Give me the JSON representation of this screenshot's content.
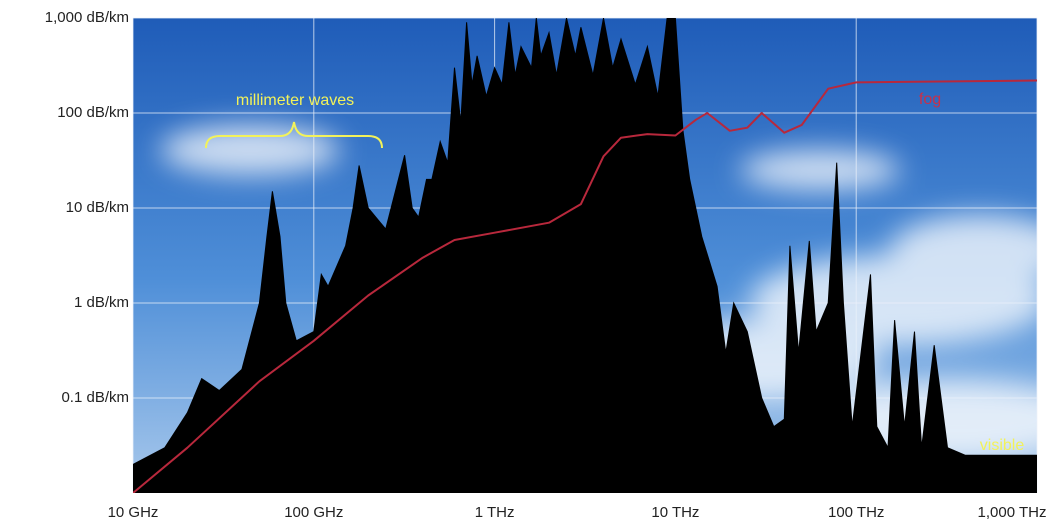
{
  "chart_data": {
    "type": "area",
    "xscale": "log",
    "yscale": "log",
    "grid": true,
    "xlim": [
      10,
      1000000
    ],
    "ylim": [
      0.01,
      1000
    ],
    "xticks": [
      {
        "value": 10,
        "label": "10 GHz"
      },
      {
        "value": 100,
        "label": "100 GHz"
      },
      {
        "value": 1000,
        "label": "1 THz"
      },
      {
        "value": 10000,
        "label": "10 THz"
      },
      {
        "value": 100000,
        "label": "100 THz"
      },
      {
        "value": 1000000,
        "label": "1,000 THz"
      }
    ],
    "yticks": [
      {
        "value": 0.1,
        "label": "0.1 dB/km"
      },
      {
        "value": 1,
        "label": "1 dB/km"
      },
      {
        "value": 10,
        "label": "10 dB/km"
      },
      {
        "value": 100,
        "label": "100 dB/km"
      },
      {
        "value": 1000,
        "label": "1,000 dB/km"
      }
    ],
    "annotations": [
      "millimeter waves",
      "visible"
    ],
    "series": [
      {
        "type": "area",
        "color": "#000000",
        "x": [
          10,
          15,
          20,
          24,
          30,
          40,
          50,
          55,
          59,
          65,
          70,
          80,
          100,
          110,
          120,
          150,
          165,
          178,
          200,
          250,
          318,
          350,
          380,
          420,
          450,
          500,
          550,
          600,
          650,
          700,
          750,
          800,
          900,
          1000,
          1100,
          1200,
          1300,
          1400,
          1600,
          1700,
          1800,
          2000,
          2200,
          2500,
          2800,
          3000,
          3500,
          4000,
          4500,
          5000,
          6000,
          7000,
          8000,
          9000,
          10000,
          11000,
          12000,
          14000,
          17000,
          19000,
          21000,
          25000,
          30000,
          35000,
          40000,
          43000,
          48000,
          55000,
          60000,
          70000,
          78000,
          85000,
          95000,
          120000,
          130000,
          150000,
          163000,
          185000,
          210000,
          230000,
          270000,
          320000,
          400000,
          1000000
        ],
        "values": [
          0.02,
          0.03,
          0.07,
          0.16,
          0.12,
          0.2,
          1,
          5,
          15,
          5,
          1,
          0.4,
          0.5,
          2,
          1.5,
          4,
          10,
          28,
          10,
          6,
          36,
          10,
          8,
          20,
          20,
          50,
          30,
          300,
          80,
          900,
          200,
          400,
          150,
          300,
          200,
          900,
          250,
          500,
          300,
          1000,
          400,
          700,
          250,
          1000,
          400,
          800,
          250,
          1000,
          300,
          600,
          200,
          500,
          150,
          1000,
          1000,
          66,
          20,
          5,
          1.5,
          0.3,
          1,
          0.5,
          0.1,
          0.05,
          0.06,
          4,
          0.3,
          4.5,
          0.5,
          1,
          30,
          1,
          0.05,
          2,
          0.05,
          0.03,
          0.66,
          0.05,
          0.5,
          0.03,
          0.36,
          0.03,
          0.025,
          0.025
        ]
      },
      {
        "type": "line",
        "name": "fog",
        "color": "#b8283c",
        "x": [
          10,
          20,
          50,
          100,
          200,
          400,
          600,
          1000,
          2000,
          3000,
          4000,
          5000,
          7000,
          10000,
          13000,
          15000,
          20000,
          25000,
          30000,
          40000,
          50000,
          70000,
          100000,
          1000000
        ],
        "values": [
          0.01,
          0.03,
          0.15,
          0.4,
          1.2,
          3,
          4.6,
          5.5,
          7,
          11,
          35,
          55,
          60,
          58,
          85,
          100,
          65,
          70,
          100,
          62,
          75,
          180,
          210,
          220
        ]
      }
    ]
  }
}
